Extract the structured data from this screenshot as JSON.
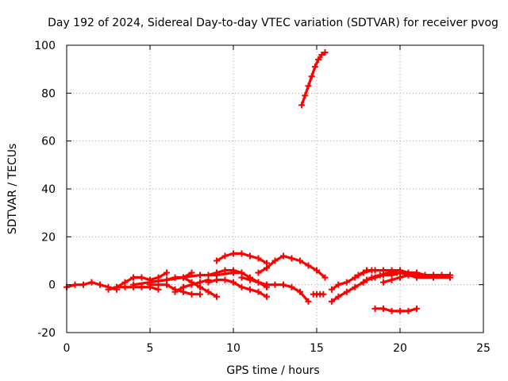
{
  "chart_data": {
    "type": "scatter",
    "title": "Day 192 of 2024, Sidereal Day-to-day VTEC variation (SDTVAR) for receiver pvog",
    "xlabel": "GPS time / hours",
    "ylabel": "SDTVAR / TECUs",
    "xlim": [
      0,
      25
    ],
    "ylim": [
      -20,
      100
    ],
    "xticks": [
      0,
      5,
      10,
      15,
      20,
      25
    ],
    "yticks": [
      -20,
      0,
      20,
      40,
      60,
      80,
      100
    ],
    "x_tick_labels": [
      "0",
      "5",
      "10",
      "15",
      "20",
      "25"
    ],
    "y_tick_labels": [
      "-20",
      "0",
      "20",
      "40",
      "60",
      "80",
      "100"
    ],
    "grid": true,
    "marker": "plus",
    "color": "#ff0000",
    "series": [
      {
        "name": "arc-1",
        "x": [
          0,
          0.5,
          1.0,
          1.5,
          2.0,
          2.5,
          3.0
        ],
        "y": [
          -1,
          0,
          0,
          1,
          0,
          -1,
          -2
        ]
      },
      {
        "name": "arc-2",
        "x": [
          2.5,
          3.0,
          3.5,
          4.0,
          4.5,
          5.0,
          5.5,
          6.0
        ],
        "y": [
          -2,
          -1,
          1,
          3,
          3,
          2,
          3,
          5
        ]
      },
      {
        "name": "arc-3",
        "x": [
          3.0,
          3.5,
          4.0,
          4.5,
          5.0,
          5.5
        ],
        "y": [
          -1,
          -1,
          -1,
          -1,
          -1,
          -2
        ]
      },
      {
        "name": "arc-4",
        "x": [
          4.0,
          5.0,
          6.0,
          7.0,
          7.5
        ],
        "y": [
          0,
          1,
          2,
          3,
          5
        ]
      },
      {
        "name": "arc-5",
        "x": [
          5.0,
          5.5,
          6.0,
          6.5,
          7.0,
          7.5,
          8.0
        ],
        "y": [
          0,
          0,
          0,
          -2,
          -3,
          -4,
          -4
        ]
      },
      {
        "name": "arc-6",
        "x": [
          5.0,
          6.0,
          7.0,
          8.0,
          9.0,
          10.0,
          10.5
        ],
        "y": [
          1,
          2,
          3,
          4,
          4,
          5,
          5
        ]
      },
      {
        "name": "arc-7",
        "x": [
          6.0,
          6.5,
          7.0,
          7.5,
          8.0,
          8.5,
          9.0
        ],
        "y": [
          2,
          3,
          3,
          1,
          -1,
          -3,
          -5
        ]
      },
      {
        "name": "arc-8",
        "x": [
          6.5,
          7.0,
          7.5,
          8.0,
          8.5
        ],
        "y": [
          -3,
          -1,
          0,
          1,
          2
        ]
      },
      {
        "name": "arc-9",
        "x": [
          9.0,
          9.5,
          10.0,
          10.5,
          11.0,
          11.5,
          12.0
        ],
        "y": [
          10,
          12,
          13,
          13,
          12,
          11,
          9
        ]
      },
      {
        "name": "arc-10",
        "x": [
          8.5,
          9.0,
          9.5,
          10.0,
          10.5,
          11.0,
          11.5,
          12.0
        ],
        "y": [
          4,
          5,
          6,
          6,
          5,
          3,
          1,
          -1
        ]
      },
      {
        "name": "arc-11",
        "x": [
          8.5,
          9.0,
          9.5,
          10.0,
          10.5,
          11.0,
          11.5,
          12.0
        ],
        "y": [
          1,
          2,
          2,
          1,
          -1,
          -2,
          -3,
          -5
        ]
      },
      {
        "name": "arc-12",
        "x": [
          11.5,
          12.0,
          12.5,
          13.0,
          13.5,
          14.0,
          14.5,
          15.0,
          15.5
        ],
        "y": [
          5,
          7,
          10,
          12,
          11,
          10,
          8,
          6,
          3
        ]
      },
      {
        "name": "arc-13",
        "x": [
          10.5,
          11.0,
          11.5,
          12.0,
          12.5,
          13.0,
          13.5,
          14.0,
          14.5
        ],
        "y": [
          3,
          2,
          1,
          0,
          0,
          0,
          -1,
          -3,
          -7
        ]
      },
      {
        "name": "arc-14",
        "x": [
          14.1,
          14.3,
          14.5,
          14.7,
          14.9,
          15.1,
          15.3,
          15.5
        ],
        "y": [
          75,
          79,
          83,
          87,
          91,
          94,
          96,
          97
        ]
      },
      {
        "name": "arc-15",
        "x": [
          14.8,
          15.0,
          15.2,
          15.4
        ],
        "y": [
          -4,
          -4,
          -4,
          -4
        ]
      },
      {
        "name": "arc-16",
        "x": [
          15.9,
          16.3,
          16.8,
          17.3,
          17.8,
          18.3,
          18.8,
          19.3,
          19.8
        ],
        "y": [
          -7,
          -5,
          -3,
          -1,
          1,
          3,
          4,
          5,
          5
        ]
      },
      {
        "name": "arc-17",
        "x": [
          15.9,
          16.3,
          16.8,
          17.3,
          17.8,
          18.3
        ],
        "y": [
          -2,
          0,
          1,
          3,
          5,
          6
        ]
      },
      {
        "name": "arc-18",
        "x": [
          17.5,
          18.0,
          18.5,
          19.0,
          19.5,
          20.0,
          20.5,
          21.0,
          21.5
        ],
        "y": [
          4,
          6,
          6,
          6,
          6,
          6,
          5,
          5,
          4
        ]
      },
      {
        "name": "arc-19",
        "x": [
          18.0,
          18.5,
          19.0,
          19.5,
          20.0,
          20.5,
          21.0,
          22.0,
          23.0
        ],
        "y": [
          2,
          3,
          4,
          4,
          5,
          4,
          3,
          3,
          3
        ]
      },
      {
        "name": "arc-20",
        "x": [
          19.0,
          19.5,
          20.0,
          20.5,
          21.0,
          21.5,
          22.0,
          22.5,
          23.0
        ],
        "y": [
          1,
          2,
          3,
          4,
          4,
          4,
          4,
          4,
          4
        ]
      },
      {
        "name": "arc-21",
        "x": [
          18.5,
          19.0,
          19.5,
          20.0,
          20.5,
          21.0
        ],
        "y": [
          -10,
          -10,
          -11,
          -11,
          -11,
          -10
        ]
      }
    ]
  }
}
